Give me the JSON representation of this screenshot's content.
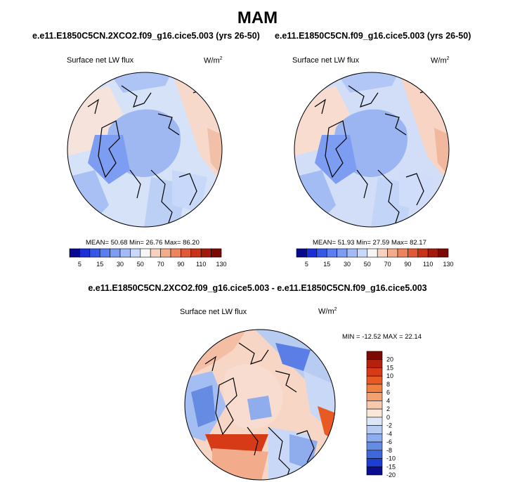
{
  "title": "MAM",
  "panels": [
    {
      "case_title": "e.e11.E1850C5CN.2XCO2.f09_g16.cice5.003 (yrs 26-50)",
      "variable": "Surface net LW flux",
      "units_base": "W/m",
      "units_exp": "2",
      "stats": "MEAN=  50.68  Min=  26.76  Max=  86.20"
    },
    {
      "case_title": "e.e11.E1850C5CN.f09_g16.cice5.003 (yrs 26-50)",
      "variable": "Surface net LW flux",
      "units_base": "W/m",
      "units_exp": "2",
      "stats": "MEAN=  51.93  Min=  27.59  Max=  82.17"
    }
  ],
  "diff_panel": {
    "case_title": "e.e11.E1850C5CN.2XCO2.f09_g16.cice5.003 - e.e11.E1850C5CN.f09_g16.cice5.003",
    "variable": "Surface net LW flux",
    "units_base": "W/m",
    "units_exp": "2",
    "stats": "MIN = -12.52 MAX =  22.14"
  },
  "colorbar_main": {
    "colors": [
      "#08088f",
      "#1a2fd6",
      "#3558e6",
      "#5a7ef0",
      "#7d9df3",
      "#a3bcf7",
      "#c8d8fa",
      "#f6f6f6",
      "#f7d2c1",
      "#f2ac8c",
      "#ec845e",
      "#df5a36",
      "#c8331a",
      "#a3190b",
      "#7a0a03"
    ],
    "labels": [
      "5",
      "15",
      "30",
      "50",
      "70",
      "90",
      "110",
      "130"
    ]
  },
  "colorbar_diff": {
    "colors": [
      "#7a0a03",
      "#b5200d",
      "#d63a16",
      "#e85a22",
      "#f08040",
      "#f4a070",
      "#f7c8ae",
      "#fbe6da",
      "#dbe7f7",
      "#b8ccf2",
      "#8fadec",
      "#668be3",
      "#3f68dc",
      "#1c3ed3",
      "#0a0d8f"
    ],
    "labels": [
      "20",
      "15",
      "10",
      "8",
      "6",
      "4",
      "2",
      "0",
      "-2",
      "-4",
      "-6",
      "-8",
      "-10",
      "-15",
      "-20"
    ]
  }
}
